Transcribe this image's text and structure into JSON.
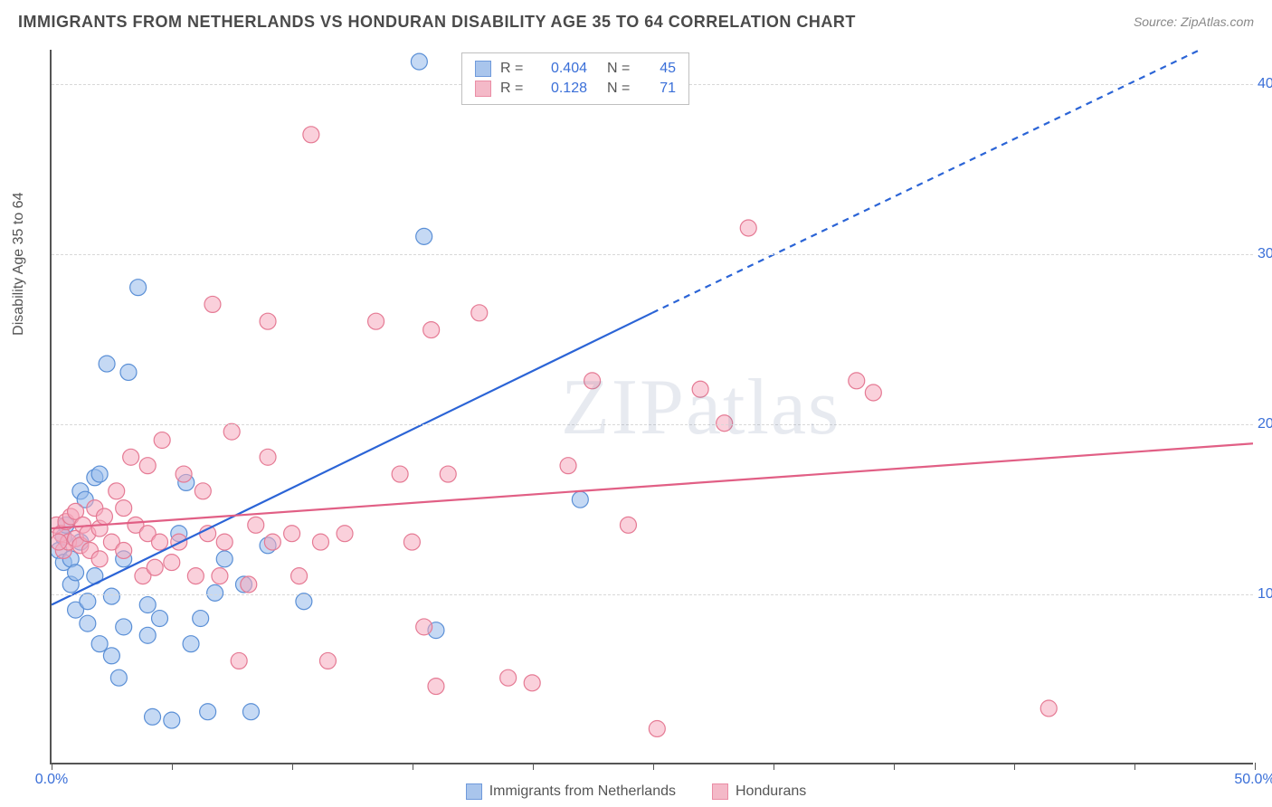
{
  "title": "IMMIGRANTS FROM NETHERLANDS VS HONDURAN DISABILITY AGE 35 TO 64 CORRELATION CHART",
  "source": "Source: ZipAtlas.com",
  "ylabel": "Disability Age 35 to 64",
  "watermark": "ZIPatlas",
  "chart": {
    "type": "scatter",
    "xlim": [
      0,
      50
    ],
    "ylim": [
      0,
      42
    ],
    "yticks": [
      10,
      20,
      30,
      40
    ],
    "ytick_labels": [
      "10.0%",
      "20.0%",
      "30.0%",
      "40.0%"
    ],
    "xticks": [
      0,
      5,
      10,
      15,
      20,
      25,
      30,
      35,
      40,
      45,
      50
    ],
    "xtick_labels_shown": {
      "0": "0.0%",
      "50": "50.0%"
    },
    "background_color": "#ffffff",
    "grid_color": "#d8d8d8",
    "axis_color": "#555555",
    "tick_label_color": "#3a6fd8",
    "marker_radius": 9,
    "marker_stroke_width": 1.2,
    "series": [
      {
        "name": "Immigrants from Netherlands",
        "fill": "rgba(150,185,235,0.55)",
        "stroke": "#5a8fd6",
        "swatch_fill": "#a9c5ec",
        "swatch_border": "#6f9adb",
        "R": "0.404",
        "N": "45",
        "trend": {
          "x1": 0,
          "y1": 9.3,
          "x2_solid": 25,
          "y2_solid": 26.5,
          "x2_dash": 50,
          "y2_dash": 43.5,
          "stroke": "#2b64d6",
          "width": 2.2,
          "dash": "7,6"
        },
        "points": [
          [
            0.3,
            12.5
          ],
          [
            0.5,
            13.3
          ],
          [
            0.5,
            11.8
          ],
          [
            0.6,
            14.0
          ],
          [
            0.8,
            12.0
          ],
          [
            0.8,
            10.5
          ],
          [
            1.0,
            11.2
          ],
          [
            1.0,
            9.0
          ],
          [
            1.2,
            13.0
          ],
          [
            1.2,
            16.0
          ],
          [
            1.5,
            9.5
          ],
          [
            1.5,
            8.2
          ],
          [
            1.8,
            16.8
          ],
          [
            1.8,
            11.0
          ],
          [
            2.0,
            7.0
          ],
          [
            2.0,
            17.0
          ],
          [
            2.3,
            23.5
          ],
          [
            2.5,
            9.8
          ],
          [
            2.5,
            6.3
          ],
          [
            2.8,
            5.0
          ],
          [
            3.0,
            8.0
          ],
          [
            3.0,
            12.0
          ],
          [
            3.2,
            23.0
          ],
          [
            3.6,
            28.0
          ],
          [
            4.0,
            7.5
          ],
          [
            4.0,
            9.3
          ],
          [
            4.2,
            2.7
          ],
          [
            4.5,
            8.5
          ],
          [
            5.0,
            2.5
          ],
          [
            5.3,
            13.5
          ],
          [
            5.6,
            16.5
          ],
          [
            5.8,
            7.0
          ],
          [
            6.2,
            8.5
          ],
          [
            6.5,
            3.0
          ],
          [
            6.8,
            10.0
          ],
          [
            7.2,
            12.0
          ],
          [
            8.0,
            10.5
          ],
          [
            8.3,
            3.0
          ],
          [
            9.0,
            12.8
          ],
          [
            10.5,
            9.5
          ],
          [
            15.3,
            41.3
          ],
          [
            15.5,
            31.0
          ],
          [
            16.0,
            7.8
          ],
          [
            22.0,
            15.5
          ],
          [
            1.4,
            15.5
          ]
        ]
      },
      {
        "name": "Hondurans",
        "fill": "rgba(245,170,190,0.55)",
        "stroke": "#e57a94",
        "swatch_fill": "#f4b9c8",
        "swatch_border": "#ea8da5",
        "R": "0.128",
        "N": "71",
        "trend": {
          "x1": 0,
          "y1": 13.8,
          "x2_solid": 50,
          "y2_solid": 18.8,
          "x2_dash": 50,
          "y2_dash": 18.8,
          "stroke": "#e15f85",
          "width": 2.2,
          "dash": ""
        },
        "points": [
          [
            0.2,
            14.0
          ],
          [
            0.4,
            13.5
          ],
          [
            0.5,
            12.5
          ],
          [
            0.6,
            14.2
          ],
          [
            0.7,
            13.0
          ],
          [
            0.8,
            14.5
          ],
          [
            1.0,
            13.2
          ],
          [
            1.0,
            14.8
          ],
          [
            1.2,
            12.8
          ],
          [
            1.3,
            14.0
          ],
          [
            1.5,
            13.5
          ],
          [
            1.6,
            12.5
          ],
          [
            1.8,
            15.0
          ],
          [
            2.0,
            13.8
          ],
          [
            2.0,
            12.0
          ],
          [
            2.2,
            14.5
          ],
          [
            2.5,
            13.0
          ],
          [
            2.7,
            16.0
          ],
          [
            3.0,
            15.0
          ],
          [
            3.0,
            12.5
          ],
          [
            3.3,
            18.0
          ],
          [
            3.5,
            14.0
          ],
          [
            3.8,
            11.0
          ],
          [
            4.0,
            13.5
          ],
          [
            4.0,
            17.5
          ],
          [
            4.3,
            11.5
          ],
          [
            4.5,
            13.0
          ],
          [
            4.6,
            19.0
          ],
          [
            5.0,
            11.8
          ],
          [
            5.3,
            13.0
          ],
          [
            5.5,
            17.0
          ],
          [
            6.0,
            11.0
          ],
          [
            6.3,
            16.0
          ],
          [
            6.5,
            13.5
          ],
          [
            6.7,
            27.0
          ],
          [
            7.0,
            11.0
          ],
          [
            7.2,
            13.0
          ],
          [
            7.5,
            19.5
          ],
          [
            7.8,
            6.0
          ],
          [
            8.2,
            10.5
          ],
          [
            8.5,
            14.0
          ],
          [
            9.0,
            18.0
          ],
          [
            9.0,
            26.0
          ],
          [
            9.2,
            13.0
          ],
          [
            10.0,
            13.5
          ],
          [
            10.3,
            11.0
          ],
          [
            10.8,
            37.0
          ],
          [
            11.2,
            13.0
          ],
          [
            11.5,
            6.0
          ],
          [
            12.2,
            13.5
          ],
          [
            13.5,
            26.0
          ],
          [
            14.5,
            17.0
          ],
          [
            15.0,
            13.0
          ],
          [
            15.5,
            8.0
          ],
          [
            15.8,
            25.5
          ],
          [
            16.0,
            4.5
          ],
          [
            16.5,
            17.0
          ],
          [
            17.8,
            26.5
          ],
          [
            19.0,
            5.0
          ],
          [
            20.0,
            4.7
          ],
          [
            21.5,
            17.5
          ],
          [
            22.5,
            22.5
          ],
          [
            24.0,
            14.0
          ],
          [
            25.2,
            2.0
          ],
          [
            27.0,
            22.0
          ],
          [
            28.0,
            20.0
          ],
          [
            29.0,
            31.5
          ],
          [
            33.5,
            22.5
          ],
          [
            34.2,
            21.8
          ],
          [
            41.5,
            3.2
          ],
          [
            0.3,
            13.0
          ]
        ]
      }
    ]
  },
  "legend_bottom": [
    {
      "label": "Immigrants from Netherlands",
      "series_idx": 0
    },
    {
      "label": "Hondurans",
      "series_idx": 1
    }
  ]
}
